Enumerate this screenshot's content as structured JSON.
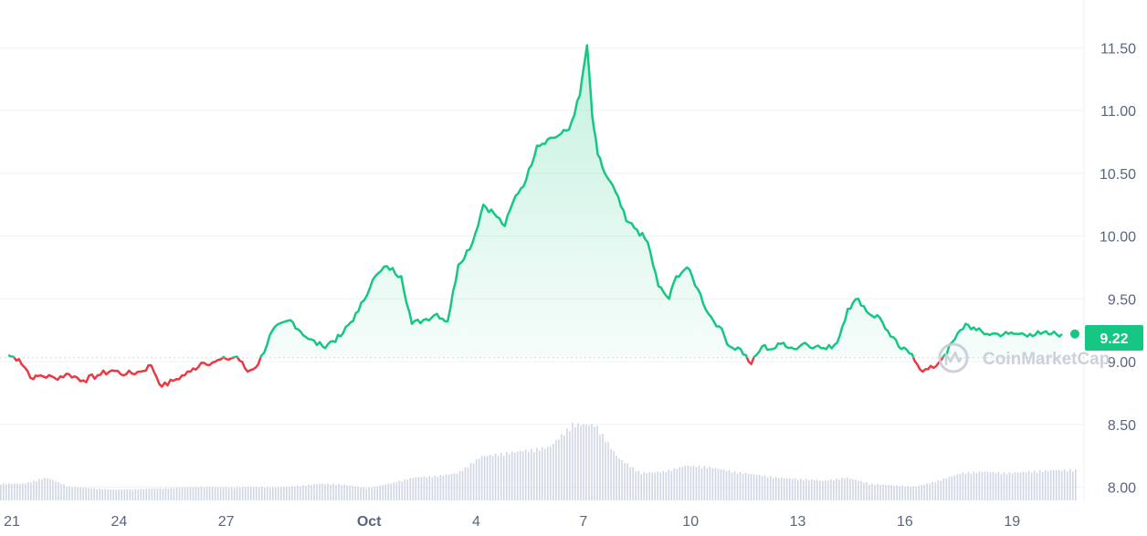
{
  "watermark": "CoinMarketCap",
  "colors": {
    "up": "#16c784",
    "down": "#ea3943",
    "grid": "#eff2f5",
    "volume": "#cfd6e4",
    "text": "#58667e"
  },
  "chart_data": {
    "type": "line",
    "current_price_label": "9.22",
    "baseline": 9.03,
    "ylim": [
      7.88,
      11.88
    ],
    "y_ticks": [
      "8.00",
      "8.50",
      "9.00",
      "9.50",
      "10.00",
      "10.50",
      "11.00",
      "11.50"
    ],
    "x_ticks": [
      {
        "label": "21",
        "day": 21,
        "bold": false
      },
      {
        "label": "24",
        "day": 24,
        "bold": false
      },
      {
        "label": "27",
        "day": 27,
        "bold": false
      },
      {
        "label": "Oct",
        "day": 31,
        "bold": true
      },
      {
        "label": "4",
        "day": 34,
        "bold": false
      },
      {
        "label": "7",
        "day": 37,
        "bold": false
      },
      {
        "label": "10",
        "day": 40,
        "bold": false
      },
      {
        "label": "13",
        "day": 43,
        "bold": false
      },
      {
        "label": "16",
        "day": 46,
        "bold": false
      },
      {
        "label": "19",
        "day": 49,
        "bold": false
      }
    ],
    "x_unit": "day (Sep 21 = 21, Oct 1 = 31)",
    "series": [
      {
        "x": [
          20.9,
          21.2,
          21.6,
          21.8,
          22.2,
          22.6,
          23.0,
          23.4,
          23.8,
          24.2,
          24.6,
          24.9,
          25.2,
          25.6,
          26.0,
          26.3,
          26.7,
          27.0,
          27.3,
          27.6,
          27.9,
          28.3,
          28.8,
          29.3,
          29.7,
          30.2,
          30.7,
          31.1,
          31.5,
          31.9,
          32.2,
          32.6,
          32.9,
          33.2,
          33.5,
          33.9,
          34.2,
          34.5,
          34.8,
          35.1,
          35.4,
          35.7,
          36.0,
          36.3,
          36.6,
          36.9,
          37.1,
          37.25,
          37.4,
          37.6,
          37.9,
          38.2,
          38.5,
          38.8,
          39.1,
          39.4,
          39.6,
          39.9,
          40.2,
          40.5,
          40.8,
          41.1,
          41.4,
          41.7,
          42.0,
          42.3,
          42.6,
          42.9,
          43.2,
          43.5,
          43.8,
          44.1,
          44.4,
          44.7,
          45.0,
          45.3,
          45.6,
          45.9,
          46.2,
          46.5,
          46.8,
          47.1,
          47.4,
          47.7,
          48.0,
          48.3,
          48.6,
          48.9,
          49.2,
          49.5,
          49.8,
          50.1,
          50.4
        ],
        "values": [
          9.05,
          9.02,
          8.86,
          8.89,
          8.87,
          8.9,
          8.85,
          8.89,
          8.93,
          8.9,
          8.92,
          8.97,
          8.8,
          8.86,
          8.92,
          8.99,
          9.0,
          9.02,
          9.04,
          8.92,
          8.98,
          9.25,
          9.33,
          9.18,
          9.12,
          9.2,
          9.4,
          9.65,
          9.76,
          9.68,
          9.3,
          9.34,
          9.38,
          9.32,
          9.77,
          9.95,
          10.25,
          10.18,
          10.08,
          10.32,
          10.45,
          10.72,
          10.77,
          10.8,
          10.85,
          11.12,
          11.52,
          10.95,
          10.65,
          10.5,
          10.35,
          10.12,
          10.05,
          9.95,
          9.6,
          9.5,
          9.68,
          9.75,
          9.58,
          9.38,
          9.28,
          9.12,
          9.1,
          8.98,
          9.12,
          9.1,
          9.15,
          9.1,
          9.15,
          9.12,
          9.1,
          9.15,
          9.42,
          9.5,
          9.38,
          9.35,
          9.2,
          9.1,
          9.06,
          8.92,
          8.95,
          9.05,
          9.18,
          9.3,
          9.25,
          9.22,
          9.22,
          9.22,
          9.22,
          9.22,
          9.22,
          9.22,
          9.22
        ]
      }
    ],
    "volume_relative": [
      0.22,
      0.22,
      0.3,
      0.18,
      0.16,
      0.14,
      0.15,
      0.16,
      0.17,
      0.18,
      0.17,
      0.18,
      0.17,
      0.19,
      0.22,
      0.21,
      0.16,
      0.22,
      0.3,
      0.32,
      0.36,
      0.58,
      0.62,
      0.66,
      0.7,
      1.0,
      1.0,
      0.56,
      0.36,
      0.38,
      0.46,
      0.44,
      0.38,
      0.34,
      0.3,
      0.28,
      0.26,
      0.3,
      0.22,
      0.2,
      0.18,
      0.26,
      0.36,
      0.38,
      0.36,
      0.38,
      0.4,
      0.4
    ]
  }
}
